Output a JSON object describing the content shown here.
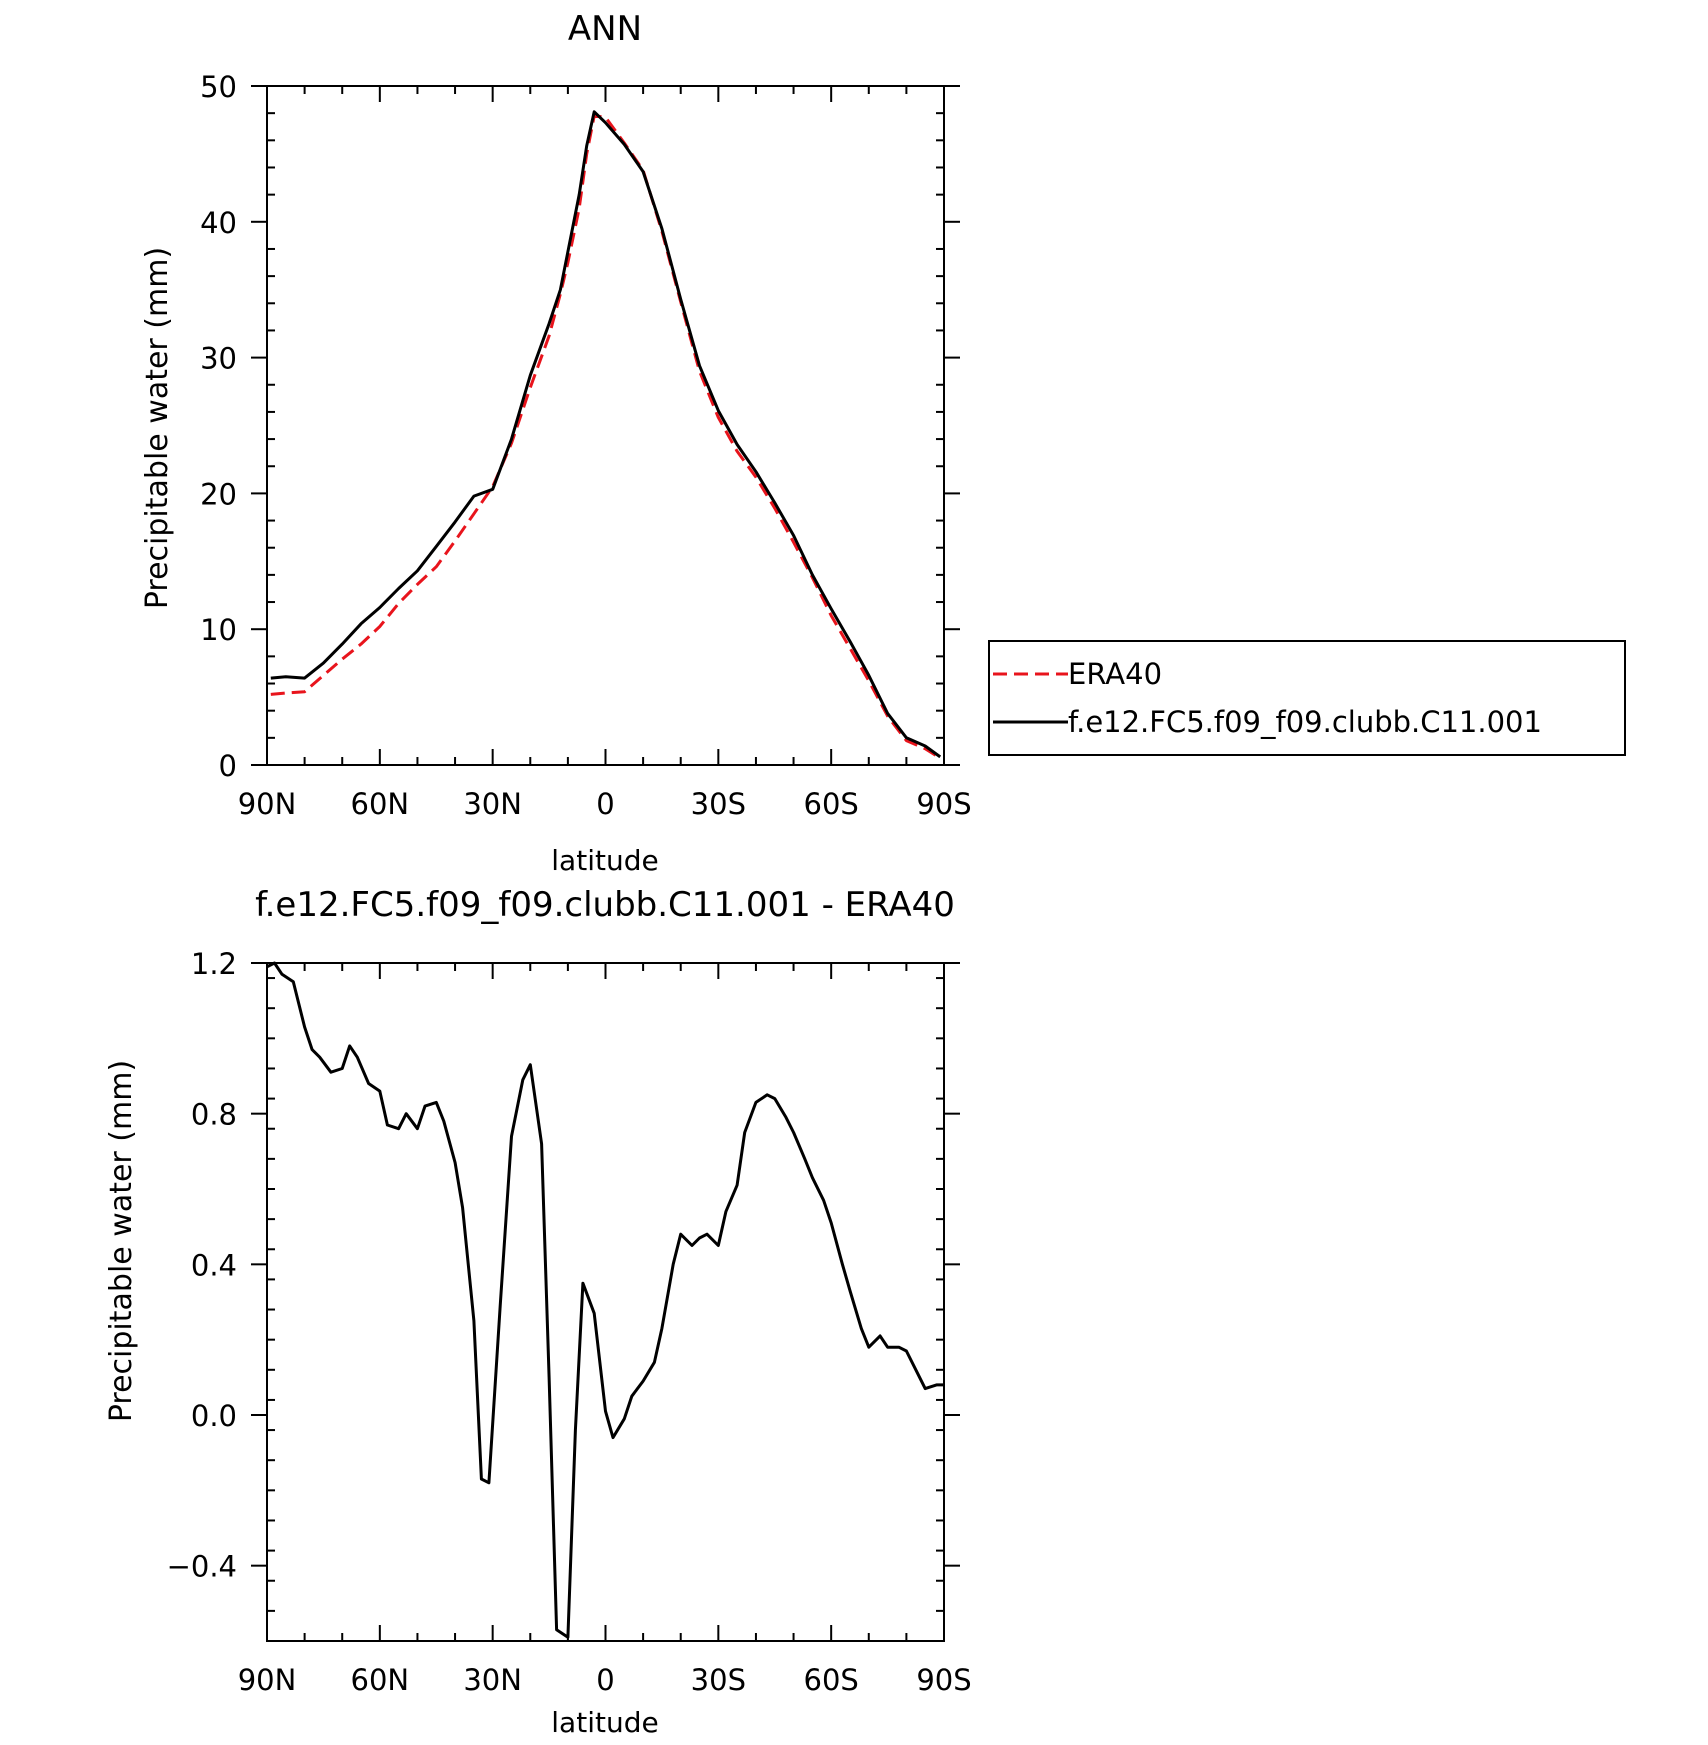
{
  "chart_data": [
    {
      "type": "line",
      "title": "ANN",
      "xlabel": "latitude",
      "ylabel": "Precipitable water (mm)",
      "xlim": [
        90,
        -90
      ],
      "ylim": [
        0,
        50
      ],
      "x_ticks": [
        90,
        60,
        30,
        0,
        -30,
        -60,
        -90
      ],
      "x_tick_labels": [
        "90N",
        "60N",
        "30N",
        "0",
        "30S",
        "60S",
        "90S"
      ],
      "y_ticks": [
        0,
        10,
        20,
        30,
        40,
        50
      ],
      "y_tick_labels": [
        "0",
        "10",
        "20",
        "30",
        "40",
        "50"
      ],
      "grid": false,
      "legend_position": "right",
      "series": [
        {
          "name": "ERA40",
          "color": "#e8141c",
          "style": "dashed",
          "x": [
            89,
            85,
            80,
            75,
            70,
            65,
            60,
            55,
            50,
            45,
            40,
            35,
            30,
            25,
            20,
            15,
            12,
            10,
            7,
            5,
            3,
            0,
            -5,
            -10,
            -15,
            -20,
            -25,
            -30,
            -35,
            -40,
            -45,
            -50,
            -55,
            -60,
            -65,
            -70,
            -75,
            -80,
            -85,
            -89
          ],
          "y": [
            5.2,
            5.3,
            5.4,
            6.6,
            7.8,
            8.9,
            10.2,
            11.9,
            13.3,
            14.6,
            16.5,
            18.5,
            20.5,
            23.7,
            27.8,
            31.6,
            34.7,
            37.0,
            41.0,
            45.0,
            47.8,
            47.7,
            45.8,
            43.8,
            39.3,
            34.1,
            29.0,
            25.6,
            23.1,
            21.2,
            18.9,
            16.4,
            13.8,
            11.0,
            8.6,
            6.2,
            3.6,
            1.8,
            1.2,
            0.5
          ]
        },
        {
          "name": "f.e12.FC5.f09_f09.clubb.C11.001",
          "color": "#000000",
          "style": "solid",
          "x": [
            89,
            85,
            80,
            75,
            70,
            65,
            60,
            55,
            50,
            45,
            40,
            35,
            30,
            25,
            20,
            15,
            12,
            10,
            7,
            5,
            3,
            0,
            -5,
            -10,
            -15,
            -20,
            -25,
            -30,
            -35,
            -40,
            -45,
            -50,
            -55,
            -60,
            -65,
            -70,
            -75,
            -80,
            -85,
            -89
          ],
          "y": [
            6.4,
            6.5,
            6.4,
            7.5,
            8.9,
            10.4,
            11.6,
            13.0,
            14.3,
            16.1,
            17.9,
            19.8,
            20.3,
            24.0,
            28.7,
            32.5,
            35.0,
            37.8,
            42.0,
            45.6,
            48.1,
            47.3,
            45.7,
            43.7,
            39.5,
            34.3,
            29.4,
            26.1,
            23.6,
            21.6,
            19.3,
            16.9,
            14.0,
            11.5,
            9.1,
            6.6,
            3.8,
            2.0,
            1.4,
            0.6
          ]
        }
      ]
    },
    {
      "type": "line",
      "title": "f.e12.FC5.f09_f09.clubb.C11.001 - ERA40",
      "xlabel": "latitude",
      "ylabel": "Precipitable water (mm)",
      "xlim": [
        90,
        -90
      ],
      "ylim": [
        -0.6,
        1.2
      ],
      "x_ticks": [
        90,
        60,
        30,
        0,
        -30,
        -60,
        -90
      ],
      "x_tick_labels": [
        "90N",
        "60N",
        "30N",
        "0",
        "30S",
        "60S",
        "90S"
      ],
      "y_ticks": [
        -0.4,
        0.0,
        0.4,
        0.8,
        1.2
      ],
      "y_tick_labels": [
        "-0.4",
        "0.0",
        "0.4",
        "0.8",
        "1.2"
      ],
      "grid": false,
      "series": [
        {
          "color": "#000000",
          "style": "solid",
          "x": [
            90,
            88,
            86,
            83,
            80,
            78,
            76,
            73,
            70,
            68,
            66,
            63,
            60,
            58,
            55,
            53,
            50,
            48,
            45,
            43,
            40,
            38,
            35,
            33,
            31,
            28,
            25,
            22,
            20,
            17,
            15,
            13,
            10,
            8,
            6,
            3,
            0,
            -2,
            -5,
            -7,
            -10,
            -13,
            -15,
            -18,
            -20,
            -23,
            -25,
            -27,
            -30,
            -32,
            -35,
            -37,
            -40,
            -43,
            -45,
            -48,
            -50,
            -53,
            -55,
            -58,
            -60,
            -63,
            -65,
            -68,
            -70,
            -73,
            -75,
            -78,
            -80,
            -83,
            -85,
            -88,
            -90
          ],
          "y": [
            1.19,
            1.2,
            1.17,
            1.15,
            1.03,
            0.97,
            0.95,
            0.91,
            0.92,
            0.98,
            0.95,
            0.88,
            0.86,
            0.77,
            0.76,
            0.8,
            0.76,
            0.82,
            0.83,
            0.78,
            0.67,
            0.55,
            0.25,
            -0.17,
            -0.18,
            0.29,
            0.74,
            0.89,
            0.93,
            0.72,
            0.1,
            -0.57,
            -0.59,
            -0.04,
            0.35,
            0.27,
            0.01,
            -0.06,
            -0.01,
            0.05,
            0.09,
            0.14,
            0.23,
            0.4,
            0.48,
            0.45,
            0.47,
            0.48,
            0.45,
            0.54,
            0.61,
            0.75,
            0.83,
            0.85,
            0.84,
            0.79,
            0.75,
            0.68,
            0.63,
            0.57,
            0.51,
            0.4,
            0.33,
            0.23,
            0.18,
            0.21,
            0.18,
            0.18,
            0.17,
            0.11,
            0.07,
            0.08,
            0.08
          ]
        }
      ]
    }
  ]
}
